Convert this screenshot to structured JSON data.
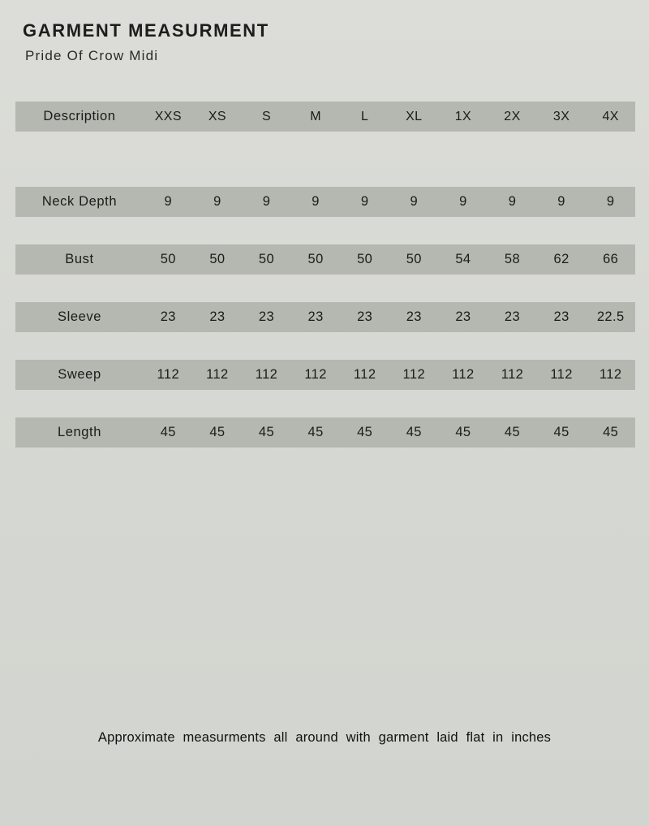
{
  "page": {
    "title": "GARMENT MEASURMENT",
    "subtitle": "Pride Of Crow Midi",
    "footnote": "Approximate measurments all around with garment laid flat in inches"
  },
  "table": {
    "header": [
      "Description",
      "XXS",
      "XS",
      "S",
      "M",
      "L",
      "XL",
      "1X",
      "2X",
      "3X",
      "4X"
    ],
    "rows": [
      {
        "label": "Neck Depth",
        "values": [
          "9",
          "9",
          "9",
          "9",
          "9",
          "9",
          "9",
          "9",
          "9",
          "9"
        ]
      },
      {
        "label": "Bust",
        "values": [
          "50",
          "50",
          "50",
          "50",
          "50",
          "50",
          "54",
          "58",
          "62",
          "66"
        ]
      },
      {
        "label": "Sleeve",
        "values": [
          "23",
          "23",
          "23",
          "23",
          "23",
          "23",
          "23",
          "23",
          "23",
          "22.5"
        ]
      },
      {
        "label": "Sweep",
        "values": [
          "112",
          "112",
          "112",
          "112",
          "112",
          "112",
          "112",
          "112",
          "112",
          "112"
        ]
      },
      {
        "label": "Length",
        "values": [
          "45",
          "45",
          "45",
          "45",
          "45",
          "45",
          "45",
          "45",
          "45",
          "45"
        ]
      }
    ]
  },
  "colors": {
    "background": "#d7d9d3",
    "row_bar": "#b5b7b1",
    "text": "#1c1c1a"
  }
}
